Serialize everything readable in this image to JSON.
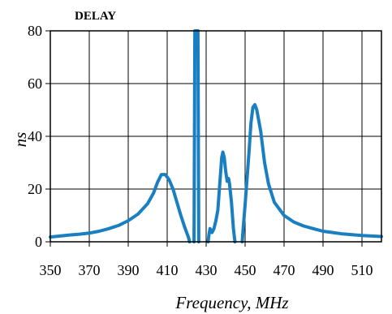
{
  "chart_data": {
    "type": "line",
    "title": "DELAY",
    "xlabel": "Frequency, MHz",
    "ylabel": "ns",
    "xlim": [
      350,
      520
    ],
    "ylim": [
      0,
      80
    ],
    "x_ticks": [
      350,
      370,
      390,
      410,
      430,
      450,
      470,
      490,
      510
    ],
    "y_ticks": [
      0,
      20,
      40,
      60,
      80
    ],
    "grid": true,
    "line_color": "#1a7fc1",
    "series": [
      {
        "segments": [
          [
            [
              350,
              1.8
            ],
            [
              355,
              2.2
            ],
            [
              360,
              2.6
            ],
            [
              365,
              2.9
            ],
            [
              370,
              3.3
            ],
            [
              375,
              4.0
            ],
            [
              380,
              5.0
            ],
            [
              385,
              6.2
            ],
            [
              390,
              8.0
            ],
            [
              395,
              10.5
            ],
            [
              400,
              14.5
            ],
            [
              403,
              18.5
            ],
            [
              405,
              22.5
            ],
            [
              407,
              25.5
            ],
            [
              409,
              25.5
            ],
            [
              411,
              23.5
            ],
            [
              413,
              20.0
            ],
            [
              415,
              15.0
            ],
            [
              417,
              10.0
            ],
            [
              419,
              5.5
            ],
            [
              421,
              1.5
            ],
            [
              421.5,
              0
            ]
          ],
          [
            [
              423.8,
              0
            ],
            [
              424.2,
              80
            ],
            [
              425.8,
              80
            ],
            [
              426.2,
              0
            ]
          ],
          [
            [
              431,
              0
            ],
            [
              431.5,
              3
            ],
            [
              432,
              5
            ],
            [
              433,
              3.5
            ],
            [
              434,
              5
            ],
            [
              435,
              8
            ],
            [
              436,
              12
            ],
            [
              437,
              22
            ],
            [
              438,
              32
            ],
            [
              438.6,
              34
            ],
            [
              439.3,
              32
            ],
            [
              440,
              27
            ],
            [
              440.8,
              23
            ],
            [
              441.5,
              24
            ],
            [
              442,
              22
            ],
            [
              443,
              15
            ],
            [
              444,
              5
            ],
            [
              444.8,
              0
            ]
          ],
          [
            [
              448.5,
              0
            ],
            [
              449,
              5
            ],
            [
              450,
              14
            ],
            [
              451,
              24
            ],
            [
              452,
              34
            ],
            [
              453,
              45
            ],
            [
              454,
              51
            ],
            [
              455,
              52
            ],
            [
              456,
              50
            ],
            [
              458,
              42
            ],
            [
              460,
              30
            ],
            [
              462,
              22
            ],
            [
              465,
              15
            ],
            [
              470,
              10
            ],
            [
              475,
              7.5
            ],
            [
              480,
              6
            ],
            [
              485,
              5
            ],
            [
              490,
              4
            ],
            [
              495,
              3.5
            ],
            [
              500,
              3
            ],
            [
              505,
              2.7
            ],
            [
              510,
              2.4
            ],
            [
              515,
              2.2
            ],
            [
              520,
              2.0
            ]
          ]
        ]
      }
    ]
  }
}
